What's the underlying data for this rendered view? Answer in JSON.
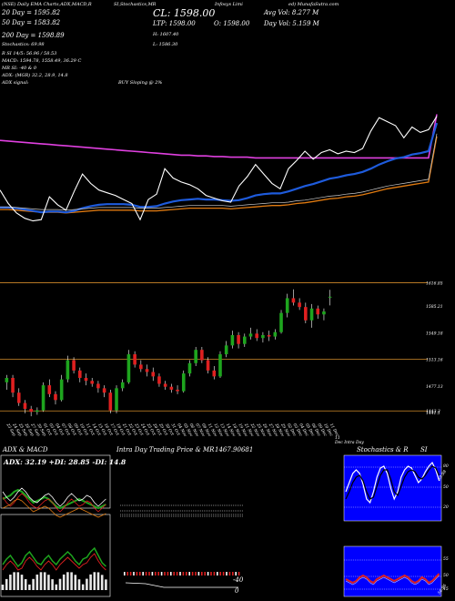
{
  "header": {
    "line1_a": "(NSE) Daily EMA Charts,ADX,MACD,R",
    "line1_b": "SI,Stochastics,MR",
    "line1_c": "Infosys Limi",
    "line1_d": "ed) MunafaSutra.com",
    "close_label": "CL: 1598.00",
    "ltp": "LTP: 1598.00",
    "open": "O: 1598.00",
    "high": "H: 1607.40",
    "low": "L: 1586.30",
    "avg_vol": "Avg Vol: 8.277 M",
    "day_vol": "Day Vol: 5.159 M",
    "ema20": "20 Day = 1595.82",
    "ema50": "50 Day = 1583.82",
    "ema200": "200 Day = 1598.89",
    "stoch": "Stochastics: 69.98",
    "rsi": "R            SI 14/5: 56.96 / 58.53",
    "macd": "MACD: 1594.78, 1558.49, 36.29 C",
    "mr": "MR              SI: -40 & 0",
    "adx": "ADX:                (MGR) 32.2, 28.9, 14.8",
    "adx_signal": "ADX  signal:",
    "buy": "BUY Sloping @ 2%"
  },
  "price_labels": [
    "1616.85",
    "1585.21",
    "1549.18",
    "1513.16",
    "1477.13",
    "1443.3",
    "1441.1"
  ],
  "date_labels": [
    "23 Sep",
    "24 Sep",
    "25 Sep",
    "26 Sep",
    "27 Sep",
    "30 Sep",
    "01 Oct",
    "03 Oct",
    "04 Oct",
    "07 Oct",
    "08 Oct",
    "09 Oct",
    "10 Oct",
    "11 Oct",
    "14 Oct",
    "15 Oct",
    "16 Oct",
    "17 Oct",
    "18 Oct",
    "21 Oct",
    "22 Oct",
    "23 Oct",
    "24 Oct",
    "25 Oct",
    "28 Oct",
    "29 Oct",
    "30 Oct",
    "31 Oct",
    "04 Nov",
    "05 Nov",
    "06 Nov",
    "07 Nov",
    "08 Nov",
    "11 Nov",
    "12 Nov",
    "13 Nov",
    "14 Nov",
    "18 Nov",
    "19 Nov",
    "21 Nov",
    "22 Nov",
    "25 Nov",
    "26 Nov",
    "27 Nov",
    "28 Nov",
    "29 Nov",
    "02 Dec",
    "03 Dec",
    "04 Dec",
    "05 Dec",
    "06 Dec",
    "09 Dec",
    "10 Dec",
    "11 Dec"
  ],
  "date_tail": [
    "11",
    "Dec Intra Day"
  ],
  "panels": {
    "adx_title": "ADX  & MACD",
    "adx_values": "ADX: 32.19  +DI: 28.85  -DI: 14.8",
    "intraday_title": "Intra  Day Trading Price  & MR",
    "intraday_value": "1467.90681",
    "intraday_m40": "-40",
    "intraday_0": "0",
    "stoch_title": "Stochastics & R",
    "stoch_title2": "SI",
    "stoch_80": "80",
    "stoch_50": "50",
    "stoch_20": "20",
    "stoch_val": "69.98",
    "rsi_55": "55",
    "rsi_50": "50",
    "rsi_45": "45",
    "rsi_val": "56.96"
  },
  "colors": {
    "up": "#1ea51e",
    "down": "#e02020",
    "ema_blue": "#1e5bdc",
    "ema_orange": "#e07a10",
    "ema_magenta": "#e040e0",
    "white": "#ffffff"
  },
  "chart_data": {
    "type": "candlestick",
    "categories": [
      "23 Sep",
      "24 Sep",
      "25 Sep",
      "26 Sep",
      "27 Sep",
      "30 Sep",
      "01 Oct",
      "03 Oct",
      "04 Oct",
      "07 Oct",
      "08 Oct",
      "09 Oct",
      "10 Oct",
      "11 Oct",
      "14 Oct",
      "15 Oct",
      "16 Oct",
      "17 Oct",
      "18 Oct",
      "21 Oct",
      "22 Oct",
      "23 Oct",
      "24 Oct",
      "25 Oct",
      "28 Oct",
      "29 Oct",
      "30 Oct",
      "31 Oct",
      "04 Nov",
      "05 Nov",
      "06 Nov",
      "07 Nov",
      "08 Nov",
      "11 Nov",
      "12 Nov",
      "13 Nov",
      "14 Nov",
      "18 Nov",
      "19 Nov",
      "21 Nov",
      "22 Nov",
      "25 Nov",
      "26 Nov",
      "27 Nov",
      "28 Nov",
      "29 Nov",
      "02 Dec",
      "03 Dec",
      "04 Dec",
      "05 Dec",
      "06 Dec",
      "09 Dec",
      "10 Dec",
      "11 Dec"
    ],
    "ohlc": [
      [
        1482,
        1492,
        1472,
        1488
      ],
      [
        1488,
        1492,
        1462,
        1468
      ],
      [
        1468,
        1474,
        1450,
        1454
      ],
      [
        1454,
        1458,
        1440,
        1446
      ],
      [
        1446,
        1450,
        1436,
        1442
      ],
      [
        1442,
        1448,
        1438,
        1444
      ],
      [
        1444,
        1482,
        1442,
        1478
      ],
      [
        1478,
        1486,
        1462,
        1466
      ],
      [
        1466,
        1470,
        1452,
        1458
      ],
      [
        1458,
        1492,
        1456,
        1486
      ],
      [
        1486,
        1518,
        1482,
        1512
      ],
      [
        1512,
        1516,
        1494,
        1498
      ],
      [
        1498,
        1502,
        1482,
        1488
      ],
      [
        1488,
        1494,
        1478,
        1484
      ],
      [
        1484,
        1488,
        1476,
        1480
      ],
      [
        1480,
        1484,
        1468,
        1474
      ],
      [
        1474,
        1478,
        1462,
        1468
      ],
      [
        1468,
        1472,
        1440,
        1444
      ],
      [
        1444,
        1478,
        1440,
        1474
      ],
      [
        1474,
        1486,
        1470,
        1482
      ],
      [
        1482,
        1526,
        1480,
        1520
      ],
      [
        1520,
        1524,
        1502,
        1506
      ],
      [
        1506,
        1512,
        1496,
        1500
      ],
      [
        1500,
        1506,
        1490,
        1496
      ],
      [
        1496,
        1502,
        1484,
        1490
      ],
      [
        1490,
        1494,
        1476,
        1480
      ],
      [
        1480,
        1484,
        1472,
        1476
      ],
      [
        1476,
        1480,
        1468,
        1472
      ],
      [
        1472,
        1478,
        1466,
        1470
      ],
      [
        1470,
        1498,
        1468,
        1494
      ],
      [
        1494,
        1512,
        1490,
        1508
      ],
      [
        1508,
        1530,
        1504,
        1526
      ],
      [
        1526,
        1530,
        1508,
        1512
      ],
      [
        1512,
        1516,
        1494,
        1498
      ],
      [
        1498,
        1504,
        1486,
        1490
      ],
      [
        1490,
        1524,
        1488,
        1520
      ],
      [
        1520,
        1538,
        1516,
        1532
      ],
      [
        1532,
        1552,
        1528,
        1546
      ],
      [
        1546,
        1550,
        1528,
        1534
      ],
      [
        1534,
        1548,
        1530,
        1544
      ],
      [
        1544,
        1556,
        1540,
        1548
      ],
      [
        1548,
        1554,
        1538,
        1542
      ],
      [
        1542,
        1550,
        1536,
        1546
      ],
      [
        1546,
        1552,
        1538,
        1544
      ],
      [
        1544,
        1554,
        1540,
        1550
      ],
      [
        1550,
        1580,
        1548,
        1576
      ],
      [
        1576,
        1602,
        1570,
        1596
      ],
      [
        1596,
        1608,
        1586,
        1590
      ],
      [
        1590,
        1596,
        1580,
        1584
      ],
      [
        1584,
        1590,
        1562,
        1566
      ],
      [
        1566,
        1588,
        1556,
        1582
      ],
      [
        1582,
        1586,
        1568,
        1574
      ],
      [
        1574,
        1582,
        1566,
        1578
      ],
      [
        1598,
        1607.4,
        1586.3,
        1598
      ]
    ],
    "ylim": [
      1430,
      1620
    ],
    "ema20": [
      1470,
      1470,
      1469,
      1467,
      1465,
      1463,
      1464,
      1464,
      1463,
      1465,
      1469,
      1472,
      1474,
      1475,
      1475,
      1475,
      1474,
      1471,
      1471,
      1472,
      1476,
      1479,
      1481,
      1482,
      1483,
      1482,
      1482,
      1481,
      1480,
      1481,
      1484,
      1488,
      1490,
      1491,
      1491,
      1494,
      1498,
      1502,
      1505,
      1509,
      1513,
      1515,
      1518,
      1520,
      1523,
      1528,
      1534,
      1539,
      1543,
      1545,
      1549,
      1551,
      1554,
      1596
    ],
    "ema50": [
      1475,
      1475,
      1474,
      1473,
      1472,
      1471,
      1471,
      1471,
      1470,
      1471,
      1472,
      1473,
      1474,
      1474,
      1474,
      1474,
      1474,
      1473,
      1473,
      1473,
      1474,
      1475,
      1476,
      1477,
      1477,
      1477,
      1477,
      1477,
      1476,
      1477,
      1478,
      1479,
      1480,
      1481,
      1481,
      1482,
      1484,
      1485,
      1487,
      1489,
      1491,
      1492,
      1494,
      1495,
      1497,
      1500,
      1503,
      1506,
      1508,
      1510,
      1512,
      1514,
      1516,
      1584
    ],
    "ema200": [
      1560,
      1559,
      1558,
      1557,
      1556,
      1555,
      1554,
      1553,
      1552,
      1551,
      1550,
      1549,
      1548,
      1547,
      1546,
      1545,
      1544,
      1543,
      1542,
      1541,
      1540,
      1539,
      1538,
      1538,
      1537,
      1537,
      1536,
      1536,
      1535,
      1535,
      1535,
      1534,
      1534,
      1534,
      1534,
      1534,
      1534,
      1534,
      1534,
      1534,
      1534,
      1534,
      1534,
      1534,
      1534,
      1534,
      1534,
      1534,
      1534,
      1534,
      1534,
      1534,
      1534,
      1599
    ],
    "volume_note": "",
    "xlabel": "",
    "ylabel": ""
  }
}
